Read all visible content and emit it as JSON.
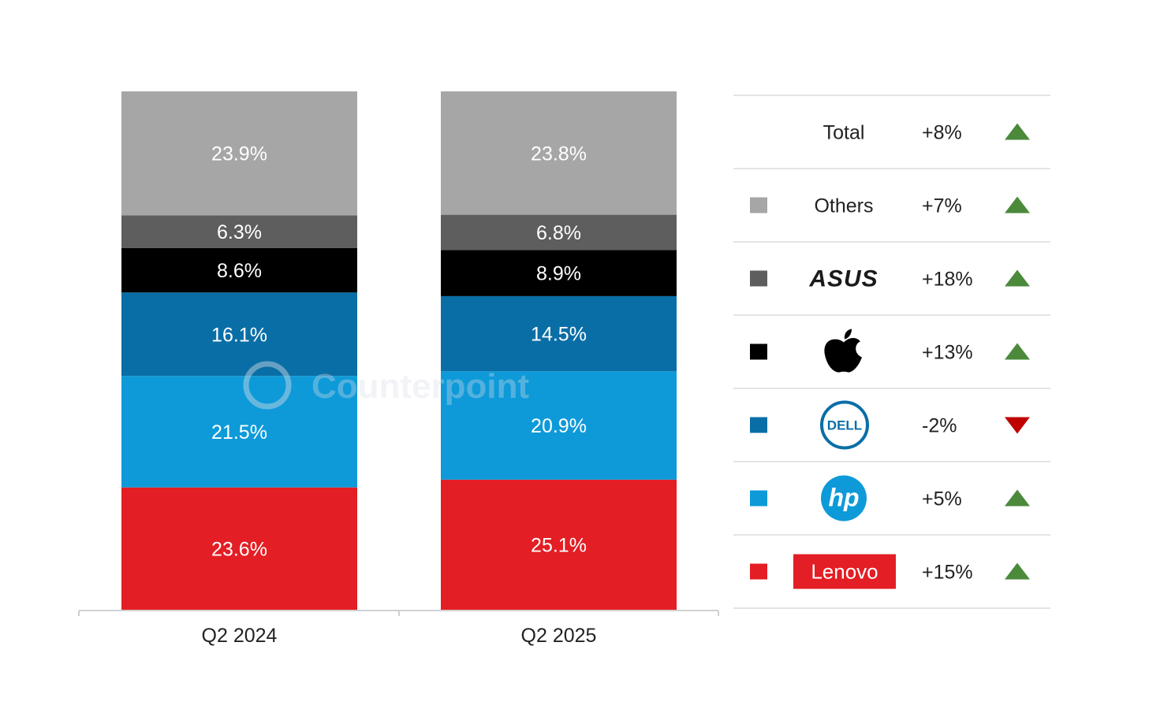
{
  "chart_data": {
    "type": "bar",
    "stacked": true,
    "categories": [
      "Q2 2024",
      "Q2 2025"
    ],
    "series": [
      {
        "values": [
          23.6,
          25.1
        ],
        "color": "#e31e24"
      },
      {
        "values": [
          21.5,
          20.9
        ],
        "color": "#0e9ad9"
      },
      {
        "values": [
          16.1,
          14.5
        ],
        "color": "#0a6ea6"
      },
      {
        "values": [
          8.6,
          8.9
        ],
        "color": "#000000"
      },
      {
        "values": [
          6.3,
          6.8
        ],
        "color": "#5e5e5e"
      },
      {
        "values": [
          23.9,
          23.8
        ],
        "color": "#a6a6a6"
      }
    ],
    "data_labels": [
      [
        "23.6%",
        "25.1%"
      ],
      [
        "21.5%",
        "20.9%"
      ],
      [
        "16.1%",
        "14.5%"
      ],
      [
        "8.6%",
        "8.9%"
      ],
      [
        "6.3%",
        "6.8%"
      ],
      [
        "23.9%",
        "23.8%"
      ]
    ],
    "ylim": [
      0,
      100
    ],
    "legend_placement": "right"
  },
  "legend": {
    "rows": [
      {
        "name": "Total",
        "change": "+8%",
        "trend": "up",
        "swatch": null,
        "logo": null
      },
      {
        "name": "Others",
        "change": "+7%",
        "trend": "up",
        "swatch": "#a6a6a6",
        "logo": null
      },
      {
        "name": "ASUS",
        "change": "+18%",
        "trend": "up",
        "swatch": "#5e5e5e",
        "logo": "asus-logo"
      },
      {
        "name": "Apple",
        "change": "+13%",
        "trend": "up",
        "swatch": "#000000",
        "logo": "apple-logo"
      },
      {
        "name": "DELL",
        "change": "-2%",
        "trend": "down",
        "swatch": "#0a6ea6",
        "logo": "dell-logo"
      },
      {
        "name": "hp",
        "change": "+5%",
        "trend": "up",
        "swatch": "#0e9ad9",
        "logo": "hp-logo"
      },
      {
        "name": "Lenovo",
        "change": "+15%",
        "trend": "up",
        "swatch": "#e31e24",
        "logo": "lenovo-logo"
      }
    ]
  },
  "watermark": "Counterpoint",
  "colors": {
    "up": "#4b8a3b",
    "down": "#c00000",
    "divider": "#e4e4e4",
    "axis": "#d0d0d0"
  }
}
